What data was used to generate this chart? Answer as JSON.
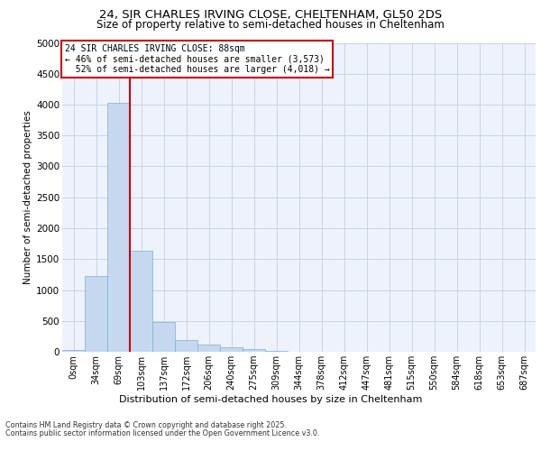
{
  "title_line1": "24, SIR CHARLES IRVING CLOSE, CHELTENHAM, GL50 2DS",
  "title_line2": "Size of property relative to semi-detached houses in Cheltenham",
  "xlabel": "Distribution of semi-detached houses by size in Cheltenham",
  "ylabel": "Number of semi-detached properties",
  "categories": [
    "0sqm",
    "34sqm",
    "69sqm",
    "103sqm",
    "137sqm",
    "172sqm",
    "206sqm",
    "240sqm",
    "275sqm",
    "309sqm",
    "344sqm",
    "378sqm",
    "412sqm",
    "447sqm",
    "481sqm",
    "515sqm",
    "550sqm",
    "584sqm",
    "618sqm",
    "653sqm",
    "687sqm"
  ],
  "values": [
    30,
    1230,
    4030,
    1640,
    480,
    195,
    110,
    75,
    50,
    20,
    0,
    0,
    0,
    0,
    0,
    0,
    0,
    0,
    0,
    0,
    0
  ],
  "bar_color": "#c5d8f0",
  "bar_edge_color": "#7bafd4",
  "property_line_x": 2.5,
  "property_size": "88sqm",
  "pct_smaller": 46,
  "count_smaller": "3,573",
  "pct_larger": 52,
  "count_larger": "4,018",
  "annotation_box_color": "#cc0000",
  "vline_color": "#cc0000",
  "grid_color": "#c8d4e8",
  "ylim": [
    0,
    5000
  ],
  "yticks": [
    0,
    500,
    1000,
    1500,
    2000,
    2500,
    3000,
    3500,
    4000,
    4500,
    5000
  ],
  "footer_line1": "Contains HM Land Registry data © Crown copyright and database right 2025.",
  "footer_line2": "Contains public sector information licensed under the Open Government Licence v3.0.",
  "bg_color": "#ffffff",
  "plot_bg_color": "#eef2fb"
}
